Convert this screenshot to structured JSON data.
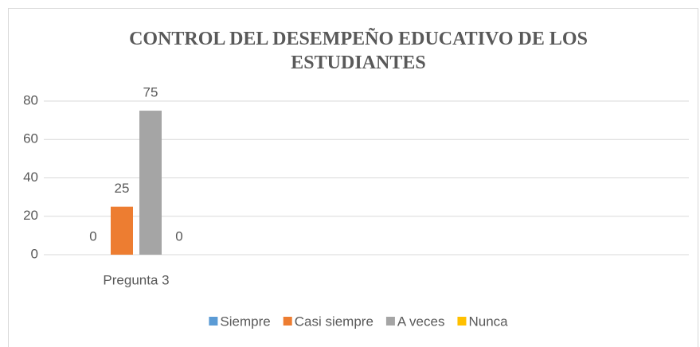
{
  "chart_data": {
    "type": "bar",
    "title": "CONTROL DEL DESEMPEÑO EDUCATIVO DE LOS ESTUDIANTES",
    "categories": [
      "Pregunta 3"
    ],
    "series": [
      {
        "name": "Siempre",
        "color": "#5b9bd5",
        "values": [
          0
        ]
      },
      {
        "name": "Casi siempre",
        "color": "#ed7d31",
        "values": [
          25
        ]
      },
      {
        "name": "A veces",
        "color": "#a5a5a5",
        "values": [
          75
        ]
      },
      {
        "name": "Nunca",
        "color": "#ffc000",
        "values": [
          0
        ]
      }
    ],
    "ylim": [
      0,
      80
    ],
    "yticks": [
      0,
      20,
      40,
      60,
      80
    ],
    "grid": true,
    "legend": "bottom"
  }
}
